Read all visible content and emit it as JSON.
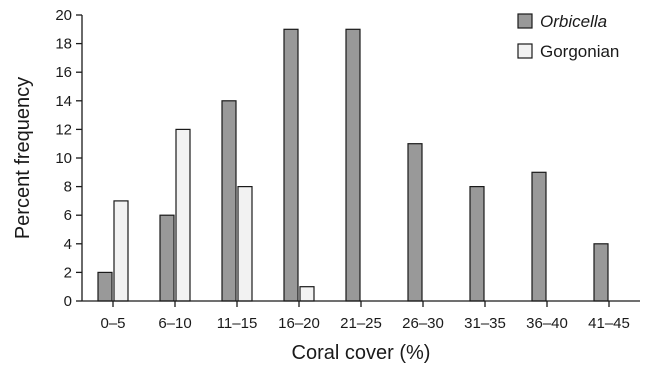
{
  "chart_data": {
    "type": "bar",
    "xlabel": "Coral cover (%)",
    "ylabel": "Percent frequency",
    "ylim": [
      0,
      20
    ],
    "yticks": [
      0,
      2,
      4,
      6,
      8,
      10,
      12,
      14,
      16,
      18,
      20
    ],
    "categories": [
      "0–5",
      "6–10",
      "11–15",
      "16–20",
      "21–25",
      "26–30",
      "31–35",
      "36–40",
      "41–45"
    ],
    "series": [
      {
        "name": "Orbicella",
        "color": "#999999",
        "italic": true,
        "values": [
          2,
          6,
          14,
          19,
          19,
          11,
          8,
          9,
          4
        ]
      },
      {
        "name": "Gorgonian",
        "color": "#f2f2f2",
        "italic": false,
        "values": [
          7,
          12,
          8,
          1,
          0,
          0,
          0,
          0,
          0
        ]
      }
    ],
    "legend_position": "top-right",
    "grid": false
  }
}
